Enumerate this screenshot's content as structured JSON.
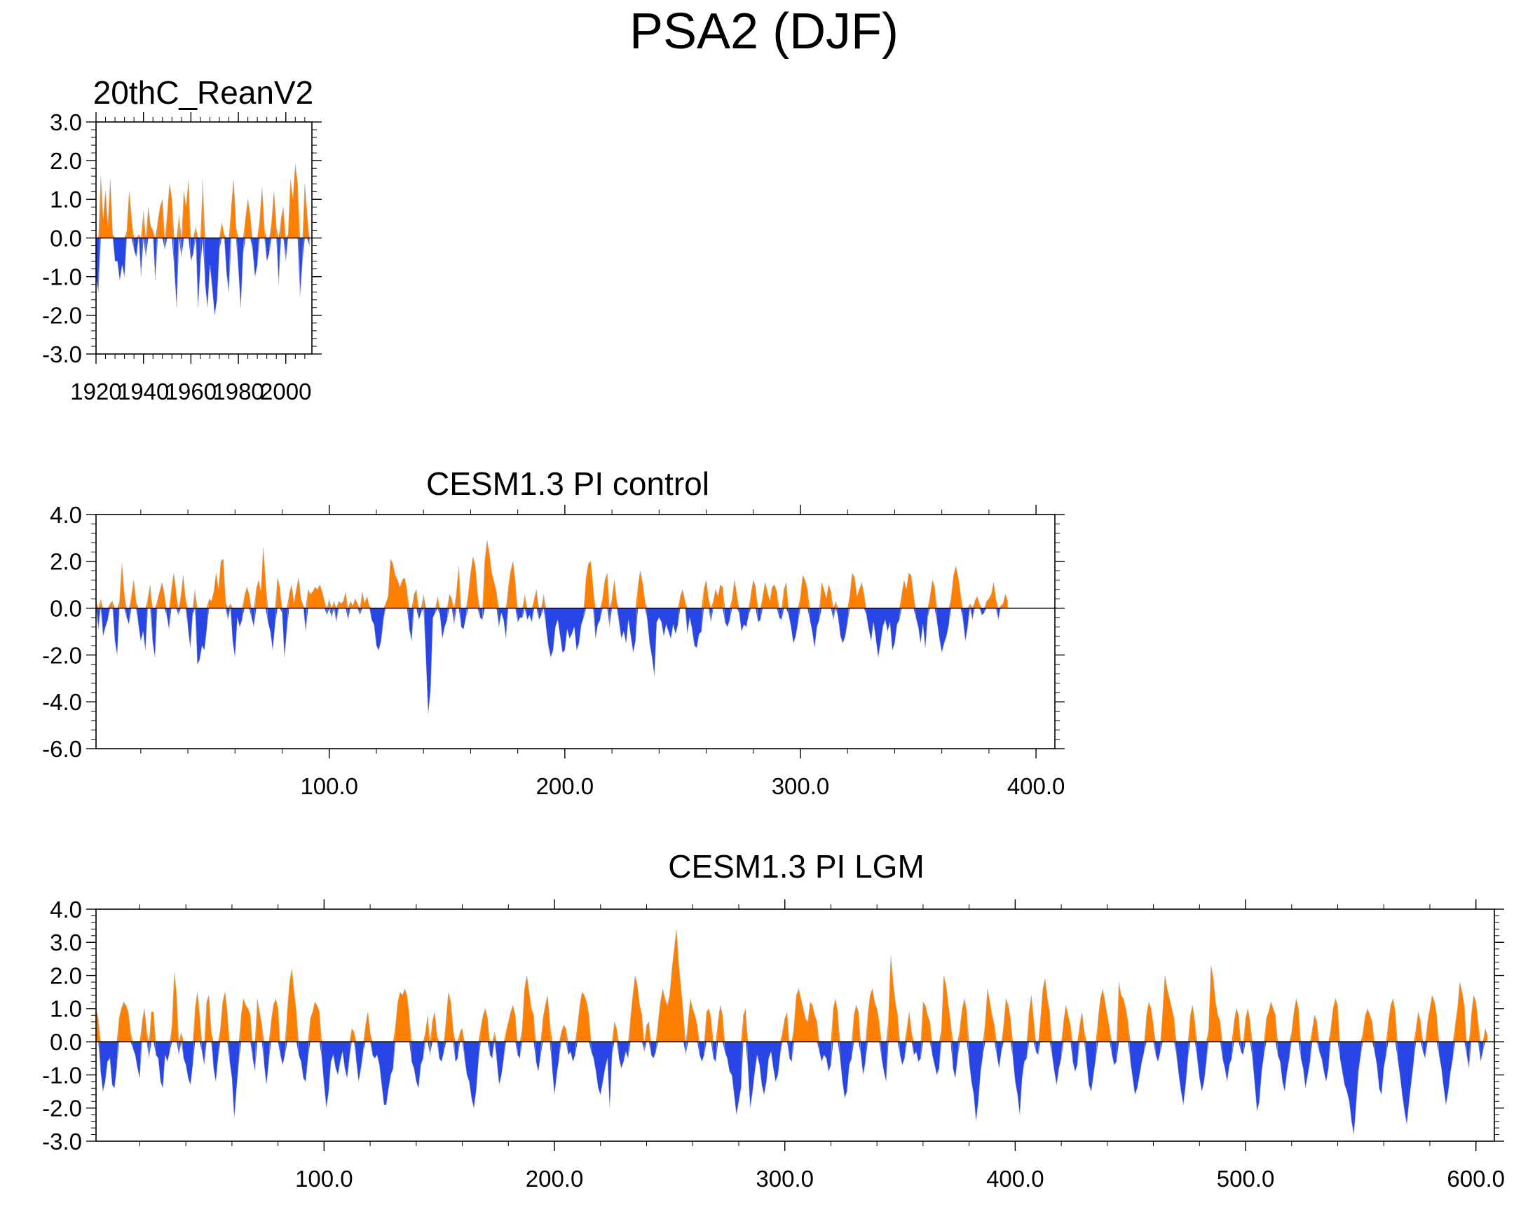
{
  "figure": {
    "title": "PSA2 (DJF)"
  },
  "colors": {
    "positive": "#ff8000",
    "negative": "#2846e6",
    "axis": "#000000"
  },
  "chart_data": [
    {
      "type": "area",
      "title": "20thC_ReanV2",
      "xlabel": "",
      "ylabel": "",
      "xlim": [
        1920,
        2011
      ],
      "ylim": [
        -3.0,
        3.0
      ],
      "yticks": [
        "3.0",
        "2.0",
        "1.0",
        "0.0",
        "-1.0",
        "-2.0",
        "-3.0"
      ],
      "ytick_values": [
        3,
        2,
        1,
        0,
        -1,
        -2,
        -3
      ],
      "xticks": [
        "1920",
        "1940",
        "1960",
        "1980",
        "2000"
      ],
      "xtick_values": [
        1920,
        1940,
        1960,
        1980,
        2000
      ],
      "baseline": 0,
      "fill_above": "orange",
      "fill_below": "blue",
      "x_start": 1920,
      "x_step": 1,
      "values": [
        -1.0,
        -1.4,
        1.6,
        0.5,
        1.2,
        0.3,
        1.5,
        0.1,
        -0.6,
        -0.6,
        -1.1,
        -0.7,
        -1.0,
        0.2,
        1.2,
        0.5,
        -0.3,
        -0.5,
        0.1,
        -1.0,
        0.7,
        -0.5,
        0.8,
        0.3,
        0.2,
        -1.1,
        0.4,
        0.8,
        1.0,
        -0.3,
        0.6,
        1.4,
        1.0,
        -0.8,
        -1.8,
        0.6,
        -0.5,
        1.2,
        0.8,
        1.5,
        -0.6,
        -0.4,
        0.3,
        -1.8,
        -0.7,
        1.5,
        -1.2,
        -1.8,
        -0.7,
        -1.3,
        -2.0,
        -1.6,
        -0.3,
        0.4,
        0.1,
        -0.9,
        -1.4,
        0.8,
        1.5,
        0.3,
        -0.8,
        -1.8,
        -0.4,
        0.5,
        1.0,
        0.6,
        -0.3,
        -1.0,
        -0.7,
        0.5,
        1.3,
        0.2,
        -0.6,
        -0.4,
        0.4,
        1.2,
        0.3,
        -1.2,
        0.5,
        0.8,
        -0.6,
        0.1,
        1.5,
        1.0,
        1.9,
        1.4,
        -1.5,
        -0.6,
        1.4,
        0.6,
        -0.2
      ]
    },
    {
      "type": "area",
      "title": "CESM1.3 PI control",
      "xlabel": "",
      "ylabel": "",
      "xlim": [
        1,
        408
      ],
      "ylim": [
        -6.0,
        4.0
      ],
      "yticks": [
        "4.0",
        "2.0",
        "0.0",
        "-2.0",
        "-4.0",
        "-6.0"
      ],
      "ytick_values": [
        4,
        2,
        0,
        -2,
        -4,
        -6
      ],
      "xticks": [
        "100.0",
        "200.0",
        "300.0",
        "400.0"
      ],
      "xtick_values": [
        100,
        200,
        300,
        400
      ],
      "baseline": 0,
      "fill_above": "orange",
      "fill_below": "blue",
      "x_start": 1,
      "x_step": 1,
      "values": [
        0.3,
        -0.9,
        0.4,
        -1.2,
        -0.8,
        -0.5,
        0.2,
        0.3,
        -1.4,
        -2.0,
        0.3,
        1.9,
        0.6,
        -0.4,
        -0.7,
        0.5,
        1.2,
        0.3,
        -0.7,
        -1.4,
        -1.0,
        -1.8,
        0.4,
        1.0,
        -1.4,
        -2.1,
        0.3,
        0.7,
        1.1,
        0.6,
        -0.3,
        -0.9,
        0.8,
        1.5,
        0.7,
        -0.3,
        0.5,
        1.4,
        0.4,
        -0.8,
        -1.7,
        -0.3,
        0.8,
        -2.4,
        -2.2,
        -1.6,
        -1.8,
        -0.9,
        0.4,
        0.3,
        0.7,
        1.5,
        0.8,
        2.0,
        2.1,
        0.3,
        -0.5,
        0.2,
        -1.4,
        -2.1,
        -0.4,
        -0.8,
        -0.5,
        0.5,
        0.9,
        0.6,
        -0.4,
        -0.8,
        0.8,
        1.2,
        0.7,
        2.6,
        1.1,
        -0.6,
        -1.0,
        -1.8,
        -0.7,
        1.3,
        0.9,
        -0.2,
        -2.1,
        -0.9,
        0.6,
        1.0,
        0.2,
        0.8,
        1.3,
        0.4,
        0.1,
        -1.0,
        0.8,
        0.6,
        0.7,
        0.9,
        0.8,
        1.0,
        0.7,
        0.3,
        -0.3,
        0.4,
        -0.4,
        0.3,
        -0.6,
        0.3,
        0.2,
        0.3,
        0.7,
        -0.5,
        0.3,
        0.1,
        0.4,
        0.2,
        -0.3,
        0.7,
        0.2,
        0.5,
        0.1,
        -0.5,
        -0.7,
        -1.6,
        -1.8,
        -1.4,
        -0.5,
        0.2,
        0.5,
        2.1,
        1.9,
        1.4,
        1.2,
        0.9,
        1.2,
        1.3,
        0.8,
        -0.9,
        -1.4,
        0.6,
        0.8,
        -0.5,
        -0.2,
        0.6,
        -2.1,
        -4.5,
        -3.5,
        -0.4,
        -0.2,
        0.5,
        -0.3,
        -1.3,
        -0.8,
        -0.5,
        0.6,
        0.4,
        -0.7,
        0.7,
        1.8,
        -0.8,
        -0.9,
        -0.4,
        0.6,
        1.5,
        2.2,
        1.8,
        0.6,
        -0.4,
        -0.5,
        2.0,
        2.9,
        2.3,
        1.5,
        1.1,
        0.7,
        -0.8,
        -0.2,
        -0.5,
        -1.3,
        0.9,
        1.6,
        2.0,
        1.1,
        -0.6,
        -0.4,
        -0.4,
        0.6,
        -0.5,
        -0.3,
        -0.6,
        0.4,
        0.8,
        -0.5,
        -0.3,
        0.6,
        -0.8,
        -1.6,
        -2.1,
        -1.8,
        -0.8,
        -0.5,
        -1.2,
        -1.9,
        -1.8,
        -0.9,
        -1.3,
        -1.1,
        -0.8,
        -1.8,
        -1.5,
        -0.7,
        -0.4,
        1.3,
        1.9,
        2.0,
        0.9,
        -1.3,
        -0.7,
        -0.5,
        0.4,
        1.2,
        1.5,
        -0.8,
        0.4,
        1.2,
        0.3,
        -0.6,
        -1.3,
        -1.0,
        -1.5,
        -0.5,
        -1.2,
        -1.9,
        -1.4,
        0.9,
        1.6,
        1.1,
        0.3,
        -0.5,
        -1.5,
        -2.1,
        -2.9,
        -0.6,
        -0.4,
        -0.6,
        -1.2,
        -0.7,
        -1.0,
        -1.3,
        -0.7,
        -1.1,
        -0.7,
        0.5,
        0.8,
        0.3,
        -1.1,
        -0.4,
        -0.9,
        -1.6,
        -1.7,
        -1.1,
        -1.0,
        0.8,
        1.2,
        0.4,
        -0.6,
        0.3,
        0.8,
        0.5,
        1.0,
        0.9,
        -0.6,
        -0.8,
        -0.5,
        0.4,
        1.2,
        0.6,
        -0.2,
        -1.0,
        -0.7,
        -0.8,
        -0.3,
        0.6,
        1.2,
        0.9,
        -0.6,
        -0.5,
        0.5,
        1.1,
        0.7,
        0.3,
        0.9,
        1.0,
        0.7,
        -0.4,
        -0.5,
        0.8,
        1.1,
        -0.3,
        -0.8,
        -1.5,
        -1.2,
        -0.6,
        0.5,
        1.4,
        1.2,
        0.8,
        -0.5,
        -1.0,
        -1.7,
        -0.8,
        -0.5,
        1.1,
        0.8,
        0.4,
        1.0,
        0.7,
        -0.5,
        0.3,
        -0.4,
        -1.2,
        -1.5,
        -1.2,
        -0.6,
        0.6,
        1.5,
        1.3,
        0.5,
        0.8,
        1.1,
        0.6,
        -0.3,
        -0.9,
        -1.4,
        -0.6,
        -1.3,
        -2.1,
        -1.5,
        -0.8,
        -0.5,
        -1.0,
        -0.6,
        -1.8,
        -1.5,
        -0.7,
        -0.5,
        0.6,
        1.2,
        0.8,
        1.5,
        1.4,
        0.6,
        -0.4,
        -0.8,
        -1.5,
        -0.7,
        -1.7,
        -0.4,
        0.5,
        1.2,
        0.9,
        -0.6,
        -1.3,
        -1.9,
        -1.5,
        -1.2,
        -0.7,
        0.5,
        1.4,
        1.8,
        1.3,
        0.6,
        -0.5,
        -1.4,
        -0.8,
        0.2,
        -0.5,
        0.3,
        0.5,
        0.2,
        -0.3,
        -0.2,
        0.3,
        0.4,
        0.6,
        1.1,
        0.4,
        -0.5,
        0.1,
        0.2,
        0.6,
        0.3
      ]
    },
    {
      "type": "area",
      "title": "CESM1.3 PI LGM",
      "xlabel": "",
      "ylabel": "",
      "xlim": [
        1,
        608
      ],
      "ylim": [
        -3.0,
        4.0
      ],
      "yticks": [
        "4.0",
        "3.0",
        "2.0",
        "1.0",
        "0.0",
        "-1.0",
        "-2.0",
        "-3.0"
      ],
      "ytick_values": [
        4,
        3,
        2,
        1,
        0,
        -1,
        -2,
        -3
      ],
      "xticks": [
        "100.0",
        "200.0",
        "300.0",
        "400.0",
        "500.0",
        "600.0"
      ],
      "xtick_values": [
        100,
        200,
        300,
        400,
        500,
        600
      ],
      "baseline": 0,
      "fill_above": "orange",
      "fill_below": "blue",
      "x_start": 1,
      "x_step": 1,
      "values": [
        1.0,
        0.7,
        -0.9,
        -1.5,
        -1.2,
        -0.6,
        -0.5,
        -1.3,
        -1.4,
        -0.8,
        0.7,
        1.0,
        1.2,
        1.1,
        0.9,
        0.3,
        -0.2,
        -0.4,
        -0.8,
        -1.1,
        0.6,
        1.0,
        0.3,
        -0.5,
        0.9,
        0.9,
        -0.4,
        -0.5,
        -1.2,
        -1.4,
        -0.4,
        -0.6,
        -0.3,
        0.5,
        2.1,
        1.4,
        -0.4,
        0.3,
        -0.5,
        -0.7,
        -1.1,
        -1.3,
        -0.7,
        1.0,
        1.5,
        0.8,
        -0.3,
        -0.7,
        1.2,
        1.4,
        0.3,
        -0.8,
        -1.2,
        -0.5,
        0.4,
        1.2,
        1.5,
        0.9,
        -0.6,
        -1.1,
        -2.3,
        -1.4,
        -0.6,
        0.8,
        1.3,
        1.1,
        1.0,
        0.8,
        -0.5,
        -0.9,
        1.3,
        0.9,
        0.5,
        -0.7,
        -1.3,
        -0.6,
        0.6,
        1.1,
        1.3,
        1.0,
        -0.4,
        -0.7,
        -0.4,
        0.9,
        1.8,
        2.2,
        1.5,
        0.9,
        -0.4,
        -0.6,
        -1.1,
        -1.2,
        -0.5,
        0.7,
        0.9,
        1.2,
        1.1,
        0.9,
        -0.5,
        -1.3,
        -2.0,
        -1.5,
        -0.6,
        -0.4,
        -0.8,
        -1.0,
        -0.6,
        -0.3,
        -0.8,
        -1.1,
        -0.5,
        0.4,
        0.3,
        -0.6,
        -1.2,
        -0.8,
        -0.3,
        0.5,
        0.9,
        0.3,
        -0.4,
        -0.5,
        -0.4,
        -0.7,
        -1.3,
        -1.9,
        -1.9,
        -1.4,
        -1.0,
        -0.8,
        0.5,
        1.2,
        1.5,
        1.4,
        1.6,
        1.4,
        0.8,
        -0.6,
        -0.8,
        -1.2,
        -1.4,
        -0.7,
        -0.5,
        0.3,
        0.8,
        -0.4,
        0.6,
        0.9,
        0.2,
        -0.5,
        -0.6,
        -0.3,
        0.7,
        1.5,
        1.2,
        0.4,
        -0.6,
        -0.5,
        0.3,
        0.4,
        -0.5,
        -1.0,
        -1.2,
        -1.7,
        -2.0,
        -1.5,
        -0.6,
        0.4,
        0.8,
        1.0,
        0.7,
        -0.4,
        -0.5,
        0.3,
        -0.6,
        -1.3,
        -1.0,
        -0.5,
        0.3,
        0.6,
        0.9,
        1.1,
        0.8,
        -0.4,
        -0.5,
        0.4,
        1.6,
        2.0,
        1.5,
        1.0,
        0.8,
        -0.6,
        -0.9,
        -0.4,
        0.7,
        1.1,
        1.4,
        0.6,
        -0.8,
        -1.6,
        -1.0,
        -0.5,
        0.3,
        0.5,
        0.4,
        -0.4,
        -0.3,
        -0.6,
        -0.4,
        0.5,
        1.1,
        1.5,
        1.4,
        1.2,
        0.8,
        -0.3,
        -0.5,
        -0.9,
        -1.4,
        -1.6,
        -1.2,
        -0.8,
        -0.5,
        -2.0,
        -0.4,
        0.6,
        0.4,
        -0.5,
        -0.8,
        -0.6,
        -0.3,
        -0.5,
        0.7,
        1.4,
        2.0,
        1.7,
        1.1,
        0.8,
        -0.3,
        0.5,
        0.6,
        -0.4,
        -0.5,
        -0.3,
        0.6,
        1.2,
        1.6,
        1.3,
        1.1,
        1.4,
        2.2,
        2.8,
        3.4,
        2.3,
        1.6,
        0.8,
        -0.4,
        0.6,
        1.3,
        1.0,
        0.8,
        0.5,
        -0.4,
        -0.6,
        -0.4,
        0.9,
        1.0,
        0.7,
        -0.5,
        -0.6,
        0.6,
        1.1,
        0.8,
        -0.3,
        -0.5,
        -0.9,
        -1.0,
        -1.6,
        -2.2,
        -1.8,
        -1.4,
        0.8,
        1.0,
        -0.8,
        -2.0,
        -1.5,
        -0.9,
        -0.4,
        -0.7,
        -1.3,
        -1.6,
        -1.2,
        -0.5,
        -0.3,
        -0.8,
        -1.2,
        -1.0,
        -0.4,
        0.3,
        0.7,
        0.9,
        -0.5,
        -0.6,
        0.5,
        1.4,
        1.6,
        1.3,
        1.0,
        0.7,
        0.6,
        1.2,
        1.1,
        0.8,
        0.6,
        -0.3,
        -0.6,
        -0.4,
        -0.5,
        -0.9,
        -0.7,
        1.0,
        1.3,
        0.9,
        -0.5,
        -1.2,
        -1.7,
        -1.5,
        -0.7,
        -0.5,
        0.8,
        1.1,
        0.9,
        -0.4,
        -1.0,
        -0.6,
        0.8,
        1.4,
        1.6,
        1.2,
        1.0,
        0.6,
        -0.5,
        -0.9,
        -1.2,
        0.7,
        2.6,
        1.8,
        1.2,
        0.8,
        -0.4,
        -0.7,
        -0.5,
        0.4,
        0.9,
        0.3,
        -0.4,
        -0.3,
        -0.6,
        -0.5,
        1.2,
        1.1,
        0.8,
        0.6,
        -0.4,
        -0.7,
        -1.0,
        -0.8,
        0.4,
        2.0,
        1.7,
        1.1,
        0.6,
        -0.8,
        -1.1,
        -0.5,
        0.4,
        1.0,
        1.3,
        0.9,
        -0.6,
        -1.2,
        -1.6,
        -2.4,
        -1.8,
        -0.9,
        -0.4,
        0.6,
        1.6,
        1.2,
        0.8,
        0.5,
        -0.4,
        -0.8,
        -0.3,
        0.5,
        1.3,
        1.1,
        0.7,
        -0.5,
        -1.2,
        -1.6,
        -2.2,
        -1.1,
        -0.6,
        -0.5,
        0.9,
        1.4,
        0.7,
        -0.3,
        -0.4,
        0.7,
        1.6,
        1.9,
        1.3,
        0.9,
        -0.4,
        -0.9,
        -1.3,
        -0.8,
        -0.5,
        0.6,
        1.1,
        0.8,
        0.5,
        -0.6,
        -0.9,
        -0.7,
        0.5,
        0.9,
        0.3,
        -0.6,
        -1.3,
        -1.5,
        -1.0,
        -0.5,
        0.7,
        1.3,
        1.6,
        1.2,
        0.8,
        0.4,
        -0.4,
        -0.7,
        -0.6,
        1.8,
        1.4,
        1.3,
        1.0,
        0.6,
        -0.6,
        -1.1,
        -1.6,
        -1.4,
        -1.0,
        -0.6,
        -0.3,
        0.8,
        1.2,
        1.0,
        0.5,
        -0.4,
        -0.6,
        -0.3,
        0.9,
        2.0,
        1.6,
        1.3,
        1.0,
        0.7,
        -0.4,
        -1.0,
        -1.5,
        -1.9,
        -1.3,
        -0.5,
        0.8,
        1.1,
        0.6,
        -0.5,
        -1.1,
        -1.5,
        -1.2,
        -0.6,
        0.4,
        2.3,
        1.9,
        1.2,
        0.8,
        0.6,
        -0.5,
        -0.8,
        -1.2,
        -0.7,
        -0.5,
        0.6,
        1.0,
        0.8,
        -0.3,
        -0.4,
        0.7,
        1.0,
        0.6,
        -0.5,
        -1.3,
        -2.1,
        -1.8,
        -0.9,
        -0.4,
        0.7,
        0.9,
        1.2,
        1.0,
        0.8,
        -0.4,
        -0.6,
        -1.2,
        -1.5,
        -0.9,
        -0.5,
        0.3,
        0.9,
        1.3,
        1.0,
        -0.5,
        -0.8,
        -1.4,
        -1.0,
        -0.6,
        0.4,
        0.8,
        0.6,
        -0.3,
        -0.5,
        -0.9,
        -1.2,
        -0.8,
        0.4,
        1.0,
        1.3,
        1.1,
        -0.5,
        -0.9,
        -1.3,
        -1.5,
        -1.8,
        -2.4,
        -2.8,
        -1.9,
        -0.9,
        -0.4,
        0.3,
        0.8,
        1.0,
        0.8,
        0.6,
        -0.3,
        -0.7,
        -1.4,
        -1.6,
        -0.8,
        -0.4,
        0.6,
        1.1,
        1.3,
        0.9,
        -0.5,
        -1.0,
        -1.6,
        -2.1,
        -2.5,
        -1.8,
        -1.2,
        -0.6,
        0.4,
        0.9,
        0.6,
        -0.3,
        -0.5,
        0.6,
        1.0,
        1.4,
        1.2,
        0.8,
        -0.4,
        -0.8,
        -1.4,
        -1.9,
        -1.5,
        -0.9,
        -0.5,
        0.5,
        1.0,
        1.8,
        1.5,
        1.1,
        -0.4,
        -0.8,
        0.8,
        1.4,
        1.2,
        0.6,
        -0.6,
        -0.3,
        0.4,
        0.2
      ]
    }
  ]
}
